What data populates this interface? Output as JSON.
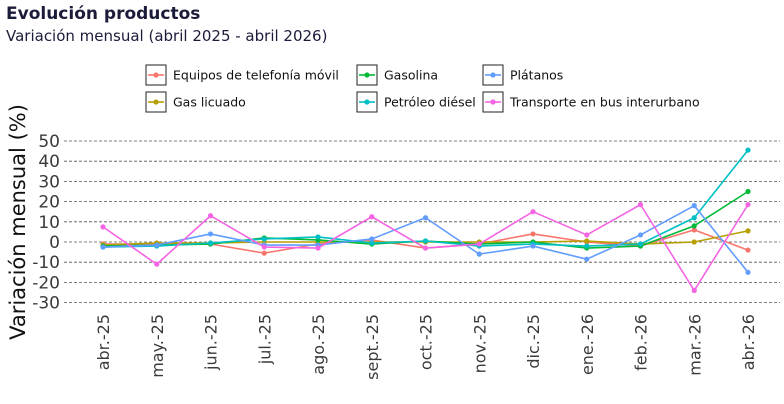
{
  "chart_data": {
    "type": "line",
    "title": "Evolución productos",
    "subtitle": "Variación mensual (abril 2025 - abril 2026)",
    "xlabel": "",
    "ylabel": "Variación mensual (%)",
    "ylim": [
      -33,
      52
    ],
    "yticks": [
      -30,
      -20,
      -10,
      0,
      10,
      20,
      30,
      40,
      50
    ],
    "grid": "horizontal dashed",
    "legend_position": "top",
    "categories": [
      "abr.-25",
      "may.-25",
      "jun.-25",
      "jul.-25",
      "ago.-25",
      "sept.-25",
      "oct.-25",
      "nov.-25",
      "dic.-25",
      "ene.-26",
      "feb.-26",
      "mar.-26",
      "abr.-26"
    ],
    "series": [
      {
        "name": "Equipos de telefonía móvil",
        "color": "#F8766D",
        "values": [
          -1,
          -1,
          -1,
          -5.5,
          -1,
          1,
          -3,
          -1,
          4,
          0,
          -2,
          6,
          -4
        ]
      },
      {
        "name": "Gas licuado",
        "color": "#B79F00",
        "values": [
          -1.5,
          -0.5,
          -0.5,
          0,
          0,
          0,
          0,
          0,
          0,
          0.5,
          -1,
          0,
          5.5
        ]
      },
      {
        "name": "Gasolina",
        "color": "#00BA38",
        "values": [
          -2,
          -1.5,
          -1,
          2,
          1,
          -1,
          0.5,
          -1,
          0,
          -3,
          -2,
          8,
          25
        ]
      },
      {
        "name": "Petróleo diésel",
        "color": "#00BFC4",
        "values": [
          -2.5,
          -2,
          -0.5,
          1.5,
          2.5,
          -0.5,
          0.5,
          -2,
          -1,
          -2,
          -1,
          12,
          45.5
        ]
      },
      {
        "name": "Plátanos",
        "color": "#619CFF",
        "values": [
          -2.5,
          -1.5,
          4,
          -1.5,
          -1.5,
          1.5,
          12,
          -6,
          -2,
          -8.5,
          3.5,
          18,
          -15
        ]
      },
      {
        "name": "Transporte en bus interurbano",
        "color": "#F564E3",
        "values": [
          7.5,
          -11,
          13,
          -2.5,
          -3,
          12.5,
          -3,
          -1,
          15,
          3.5,
          18.5,
          -24,
          18.5
        ]
      }
    ]
  }
}
